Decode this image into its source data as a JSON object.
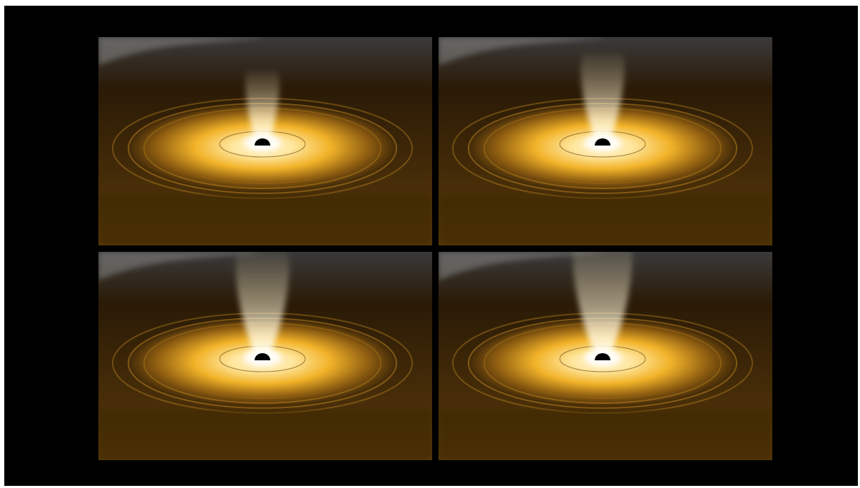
{
  "figure": {
    "panels": [
      {
        "id": "panel-1",
        "jet_strength": 0.35
      },
      {
        "id": "panel-2",
        "jet_strength": 0.6
      },
      {
        "id": "panel-3",
        "jet_strength": 0.85
      },
      {
        "id": "panel-4",
        "jet_strength": 1.0
      }
    ],
    "colors": {
      "background": "#000000",
      "disk_core": "#fff4d6",
      "disk_mid": "#f2b329",
      "disk_outer": "#8a5a10",
      "sky": "#2a1a06",
      "black_hole": "#000000"
    }
  }
}
